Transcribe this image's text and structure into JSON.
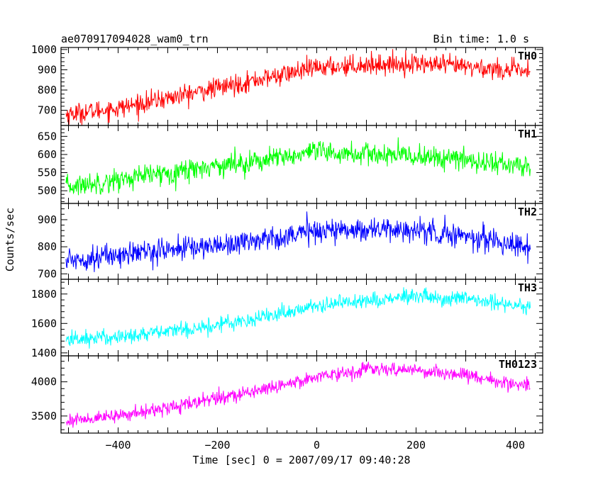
{
  "header": {
    "title": "ae070917094028_wam0_trn",
    "bin_time": "Bin time: 1.0 s"
  },
  "axes": {
    "ylabel": "Counts/sec",
    "xlabel": "Time [sec] 0 = 2007/09/17 09:40:28"
  },
  "chart_data": [
    {
      "type": "line",
      "name": "TH0",
      "color": "#ff0000",
      "xlim": [
        -515,
        455
      ],
      "ylim": [
        625,
        1010
      ],
      "yticks": [
        700,
        800,
        900,
        1000
      ],
      "x_range": [
        -505,
        430
      ],
      "trend": [
        [
          -505,
          680
        ],
        [
          -400,
          710
        ],
        [
          -300,
          760
        ],
        [
          -200,
          810
        ],
        [
          -100,
          860
        ],
        [
          0,
          910
        ],
        [
          100,
          925
        ],
        [
          200,
          930
        ],
        [
          300,
          915
        ],
        [
          430,
          890
        ]
      ],
      "noise_amplitude": 45
    },
    {
      "type": "line",
      "name": "TH1",
      "color": "#00ff00",
      "xlim": [
        -515,
        455
      ],
      "ylim": [
        465,
        680
      ],
      "yticks": [
        500,
        550,
        600,
        650
      ],
      "x_range": [
        -505,
        430
      ],
      "trend": [
        [
          -505,
          510
        ],
        [
          -400,
          530
        ],
        [
          -300,
          550
        ],
        [
          -200,
          570
        ],
        [
          -100,
          585
        ],
        [
          0,
          605
        ],
        [
          100,
          600
        ],
        [
          200,
          595
        ],
        [
          300,
          585
        ],
        [
          430,
          565
        ]
      ],
      "noise_amplitude": 28
    },
    {
      "type": "line",
      "name": "TH2",
      "color": "#0000ff",
      "xlim": [
        -515,
        455
      ],
      "ylim": [
        680,
        960
      ],
      "yticks": [
        700,
        800,
        900
      ],
      "x_range": [
        -505,
        430
      ],
      "trend": [
        [
          -505,
          750
        ],
        [
          -400,
          770
        ],
        [
          -300,
          790
        ],
        [
          -200,
          805
        ],
        [
          -100,
          830
        ],
        [
          0,
          860
        ],
        [
          100,
          865
        ],
        [
          200,
          860
        ],
        [
          300,
          840
        ],
        [
          430,
          800
        ]
      ],
      "noise_amplitude": 40
    },
    {
      "type": "line",
      "name": "TH3",
      "color": "#00ffff",
      "xlim": [
        -515,
        455
      ],
      "ylim": [
        1380,
        1900
      ],
      "yticks": [
        1400,
        1600,
        1800
      ],
      "x_range": [
        -505,
        430
      ],
      "trend": [
        [
          -505,
          1490
        ],
        [
          -400,
          1510
        ],
        [
          -300,
          1545
        ],
        [
          -200,
          1590
        ],
        [
          -100,
          1650
        ],
        [
          0,
          1720
        ],
        [
          100,
          1760
        ],
        [
          200,
          1780
        ],
        [
          300,
          1760
        ],
        [
          430,
          1720
        ]
      ],
      "noise_amplitude": 50
    },
    {
      "type": "line",
      "name": "TH0123",
      "color": "#ff00ff",
      "xlim": [
        -515,
        455
      ],
      "ylim": [
        3250,
        4380
      ],
      "yticks": [
        3500,
        4000
      ],
      "x_range": [
        -505,
        430
      ],
      "trend": [
        [
          -505,
          3430
        ],
        [
          -400,
          3500
        ],
        [
          -300,
          3620
        ],
        [
          -200,
          3760
        ],
        [
          -100,
          3900
        ],
        [
          0,
          4080
        ],
        [
          100,
          4180
        ],
        [
          200,
          4170
        ],
        [
          300,
          4100
        ],
        [
          430,
          3920
        ]
      ],
      "noise_amplitude": 90
    }
  ],
  "xaxis": {
    "xlim": [
      -515,
      455
    ],
    "ticks": [
      -400,
      -200,
      0,
      200,
      400
    ],
    "tick_labels": [
      "−400",
      "−200",
      "0",
      "200",
      "400"
    ]
  }
}
